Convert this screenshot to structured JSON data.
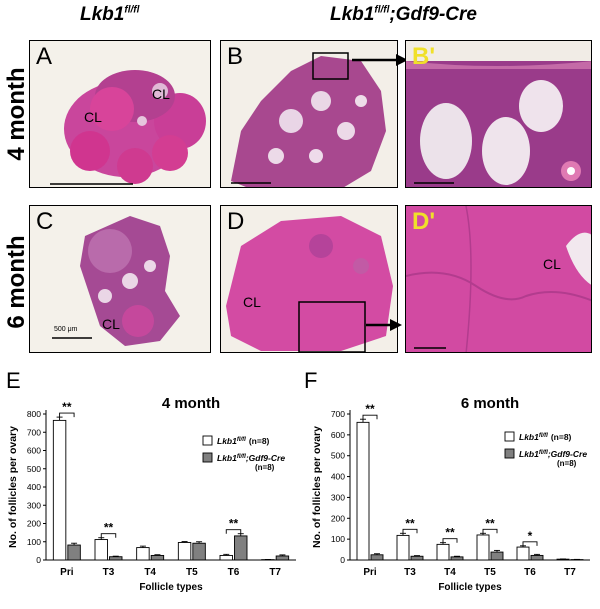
{
  "headers": {
    "col1": {
      "main": "Lkb1",
      "sup": "fl/fl"
    },
    "col2": {
      "main": "Lkb1",
      "sup": "fl/fl",
      "rest": ";Gdf9-Cre"
    },
    "row1": "4 month",
    "row2": "6 month"
  },
  "panels": {
    "A": "A",
    "B": "B",
    "B2": "B'",
    "C": "C",
    "D": "D",
    "D2": "D'",
    "cl": "CL",
    "scale_c": "500 μm"
  },
  "chart_data": [
    {
      "panel_letter": "E",
      "type": "bar",
      "title": "4 month",
      "xlabel": "Follicle types",
      "ylabel": "No. of follicles per ovary",
      "categories": [
        "Pri",
        "T3",
        "T4",
        "T5",
        "T6",
        "T7"
      ],
      "ylim": [
        0,
        800
      ],
      "yticks": [
        0,
        100,
        200,
        300,
        400,
        500,
        600,
        700,
        800
      ],
      "series": [
        {
          "name": "Lkb1fl/fl (n=8)",
          "color": "#ffffff",
          "values": [
            765,
            112,
            68,
            96,
            25,
            2
          ]
        },
        {
          "name": "Lkb1fl/fl;Gdf9-Cre (n=8)",
          "color": "#808080",
          "values": [
            82,
            18,
            25,
            92,
            132,
            22
          ]
        }
      ],
      "errors": [
        [
          18,
          10,
          8,
          5,
          6,
          1
        ],
        [
          10,
          3,
          4,
          8,
          12,
          6
        ]
      ],
      "significance": [
        {
          "category": "Pri",
          "label": "**"
        },
        {
          "category": "T3",
          "label": "**"
        },
        {
          "category": "T6",
          "label": "**"
        }
      ],
      "legend": {
        "items": [
          {
            "main": "Lkb1",
            "sup": "fl/fl",
            "rest": "",
            "n": "(n=8)"
          },
          {
            "main": "Lkb1",
            "sup": "fl/fl",
            "rest": ";Gdf9-Cre",
            "n": "(n=8)"
          }
        ]
      }
    },
    {
      "panel_letter": "F",
      "type": "bar",
      "title": "6 month",
      "xlabel": "Follicle types",
      "ylabel": "No. of follicles per ovary",
      "categories": [
        "Pri",
        "T3",
        "T4",
        "T5",
        "T6",
        "T7"
      ],
      "ylim": [
        0,
        700
      ],
      "yticks": [
        0,
        100,
        200,
        300,
        400,
        500,
        600,
        700
      ],
      "series": [
        {
          "name": "Lkb1fl/fl (n=8)",
          "color": "#ffffff",
          "values": [
            660,
            118,
            75,
            120,
            62,
            4
          ]
        },
        {
          "name": "Lkb1fl/fl;Gdf9-Cre (n=8)",
          "color": "#808080",
          "values": [
            25,
            18,
            15,
            38,
            22,
            2
          ]
        }
      ],
      "errors": [
        [
          15,
          10,
          8,
          8,
          6,
          1
        ],
        [
          5,
          3,
          3,
          8,
          5,
          1
        ]
      ],
      "significance": [
        {
          "category": "Pri",
          "label": "**"
        },
        {
          "category": "T3",
          "label": "**"
        },
        {
          "category": "T4",
          "label": "**"
        },
        {
          "category": "T5",
          "label": "**"
        },
        {
          "category": "T6",
          "label": "*"
        }
      ],
      "legend": {
        "items": [
          {
            "main": "Lkb1",
            "sup": "fl/fl",
            "rest": "",
            "n": "(n=8)"
          },
          {
            "main": "Lkb1",
            "sup": "fl/fl",
            "rest": ";Gdf9-Cre",
            "n": "(n=8)"
          }
        ]
      }
    }
  ]
}
